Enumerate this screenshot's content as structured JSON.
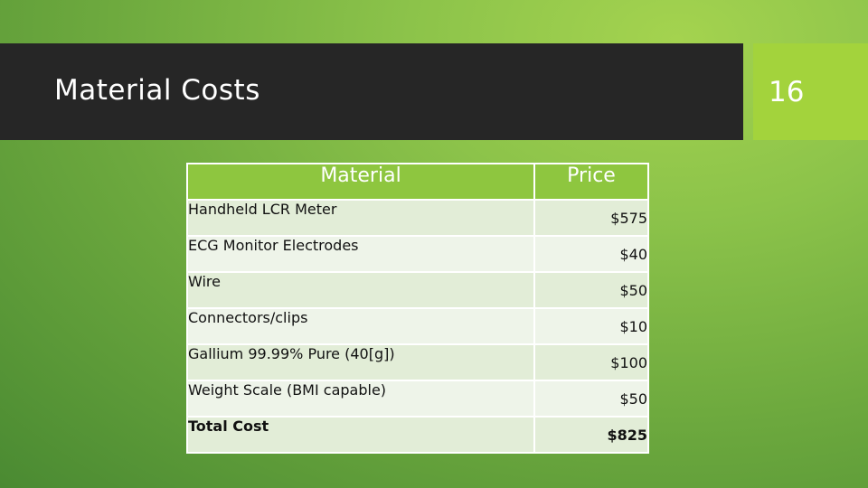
{
  "slide": {
    "title": "Material Costs",
    "number": "16"
  },
  "table": {
    "headers": [
      "Material",
      "Price"
    ],
    "rows": [
      {
        "material": "Handheld LCR Meter",
        "price": "$575"
      },
      {
        "material": "ECG Monitor Electrodes",
        "price": "$40"
      },
      {
        "material": "Wire",
        "price": "$50"
      },
      {
        "material": "Connectors/clips",
        "price": "$10"
      },
      {
        "material": "Gallium 99.99% Pure (40[g])",
        "price": "$100"
      },
      {
        "material": "Weight Scale (BMI capable)",
        "price": "$50"
      },
      {
        "material": "Total Cost",
        "price": "$825"
      }
    ]
  },
  "colors": {
    "title_bar": "#262626",
    "number_box": "#a3d33c",
    "header_fill": "#8ec63f",
    "row_fill": "#e2edd7"
  }
}
